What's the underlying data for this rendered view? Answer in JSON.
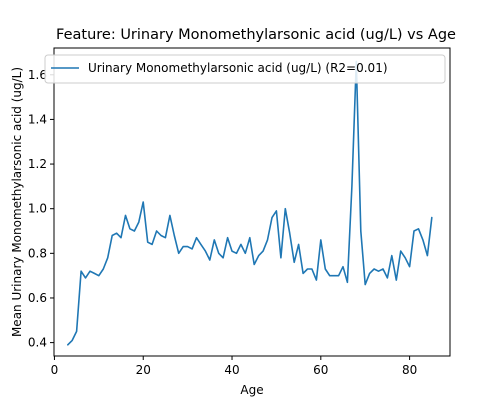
{
  "chart_data": {
    "type": "line",
    "title": "Feature: Urinary Monomethylarsonic acid (ug/L) vs Age",
    "xlabel": "Age",
    "ylabel": "Mean Urinary Monomethylarsonic acid (ug/L)",
    "xlim": [
      -0.1,
      89.1
    ],
    "ylim": [
      0.34,
      1.72
    ],
    "xticks": [
      0,
      20,
      40,
      60,
      80
    ],
    "yticks": [
      0.4,
      0.6,
      0.8,
      1.0,
      1.2,
      1.4,
      1.6
    ],
    "ytick_labels": [
      "0.4",
      "0.6",
      "0.8",
      "1.0",
      "1.2",
      "1.4",
      "1.6"
    ],
    "grid": false,
    "legend_position": "top-right",
    "line_color": "#1f77b4",
    "series": [
      {
        "name": "Urinary Monomethylarsonic acid (ug/L) (R2=0.01)",
        "x": [
          3,
          4,
          5,
          6,
          7,
          8,
          9,
          10,
          11,
          12,
          13,
          14,
          15,
          16,
          17,
          18,
          19,
          20,
          21,
          22,
          23,
          24,
          25,
          26,
          27,
          28,
          29,
          30,
          31,
          32,
          33,
          34,
          35,
          36,
          37,
          38,
          39,
          40,
          41,
          42,
          43,
          44,
          45,
          46,
          47,
          48,
          49,
          50,
          51,
          52,
          53,
          54,
          55,
          56,
          57,
          58,
          59,
          60,
          61,
          62,
          63,
          64,
          65,
          66,
          67,
          68,
          69,
          70,
          71,
          72,
          73,
          74,
          75,
          76,
          77,
          78,
          79,
          80,
          81,
          82,
          83,
          84,
          85
        ],
        "y": [
          0.39,
          0.41,
          0.45,
          0.72,
          0.69,
          0.72,
          0.71,
          0.7,
          0.73,
          0.78,
          0.88,
          0.89,
          0.87,
          0.97,
          0.91,
          0.9,
          0.94,
          1.03,
          0.85,
          0.84,
          0.9,
          0.88,
          0.87,
          0.97,
          0.88,
          0.8,
          0.83,
          0.83,
          0.82,
          0.87,
          0.84,
          0.81,
          0.77,
          0.86,
          0.8,
          0.78,
          0.87,
          0.81,
          0.8,
          0.84,
          0.8,
          0.87,
          0.75,
          0.79,
          0.81,
          0.86,
          0.96,
          0.99,
          0.78,
          1.0,
          0.89,
          0.76,
          0.84,
          0.71,
          0.73,
          0.73,
          0.68,
          0.86,
          0.73,
          0.7,
          0.7,
          0.7,
          0.74,
          0.67,
          1.1,
          1.66,
          0.9,
          0.66,
          0.71,
          0.73,
          0.72,
          0.73,
          0.69,
          0.79,
          0.68,
          0.81,
          0.78,
          0.74,
          0.9,
          0.91,
          0.86,
          0.79,
          0.96
        ]
      }
    ]
  }
}
